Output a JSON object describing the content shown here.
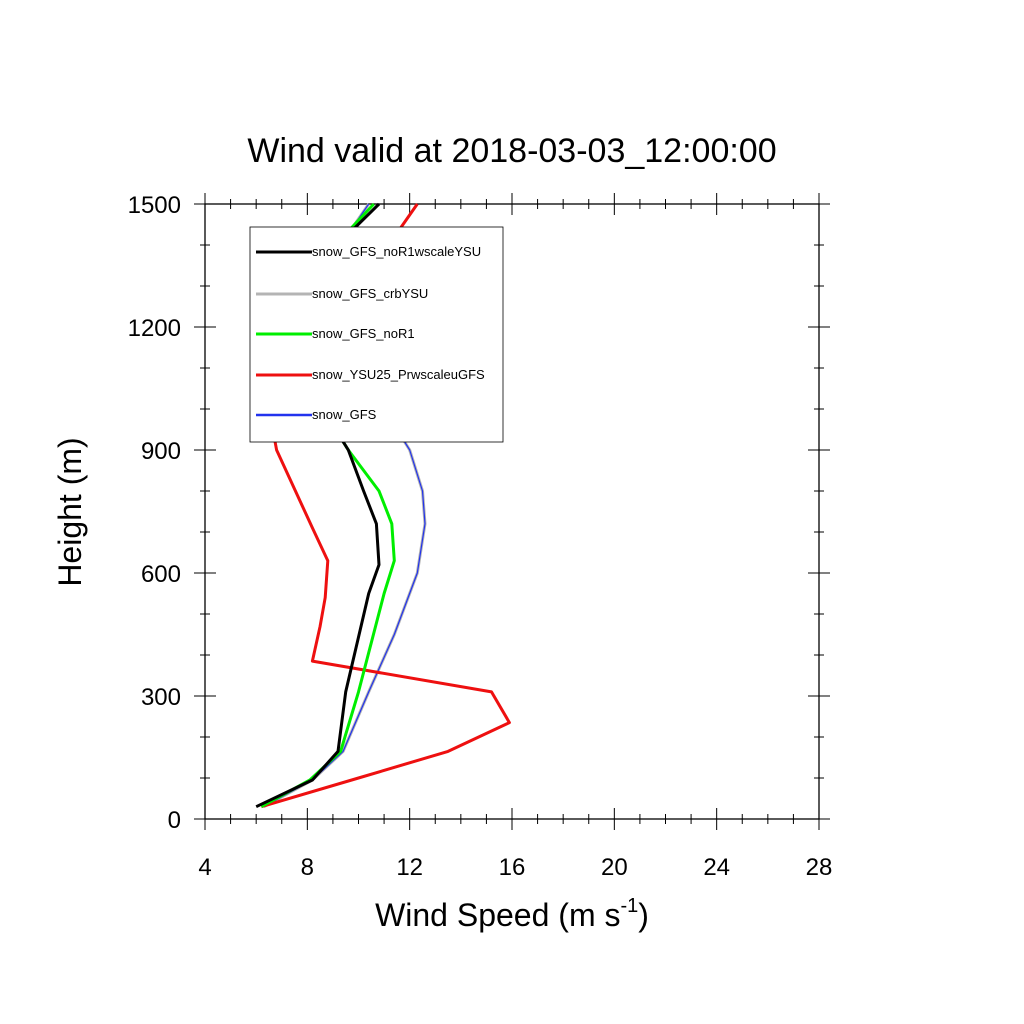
{
  "chart_data": {
    "type": "line",
    "title": "Wind valid at 2018-03-03_12:00:00",
    "xlabel": "Wind Speed (m s",
    "xlabel_superscript": "-1",
    "xlabel_suffix": ")",
    "ylabel": "Height (m)",
    "xlim": [
      4,
      28
    ],
    "ylim": [
      0,
      1500
    ],
    "x_ticks": [
      4,
      8,
      12,
      16,
      20,
      24,
      28
    ],
    "y_ticks": [
      0,
      300,
      600,
      900,
      1200,
      1500
    ],
    "grid": false,
    "legend_position": "top-left",
    "series": [
      {
        "name": "snow_GFS_noR1wscaleYSU",
        "color": "#000000",
        "x": [
          6.0,
          8.2,
          9.2,
          9.5,
          10.4,
          10.8,
          10.7,
          10.2,
          9.6,
          8.6,
          7.6,
          7.5,
          8.3,
          9.5,
          10.8
        ],
        "y": [
          30,
          95,
          165,
          310,
          550,
          620,
          720,
          800,
          900,
          1000,
          1080,
          1180,
          1300,
          1420,
          1500
        ]
      },
      {
        "name": "snow_GFS_crbYSU",
        "color": "#b4b4b4",
        "x": [
          6.3,
          8.2,
          9.4,
          10.4,
          11.4,
          12.3,
          12.6,
          12.5,
          12.0,
          11.2,
          10.0,
          9.0,
          8.8,
          9.3,
          10.4
        ],
        "y": [
          30,
          95,
          165,
          310,
          450,
          600,
          720,
          800,
          900,
          980,
          1080,
          1180,
          1300,
          1400,
          1500
        ]
      },
      {
        "name": "snow_GFS_noR1",
        "color": "#00ee00",
        "x": [
          6.2,
          8.1,
          9.3,
          10.0,
          11.0,
          11.4,
          11.3,
          10.8,
          9.6,
          8.6,
          7.8,
          7.6,
          8.2,
          9.4,
          10.6
        ],
        "y": [
          30,
          95,
          165,
          310,
          550,
          630,
          720,
          800,
          900,
          1000,
          1090,
          1180,
          1300,
          1420,
          1500
        ]
      },
      {
        "name": "snow_YSU25_PrwscaleuGFS",
        "color": "#ee1010",
        "x": [
          6.2,
          10.0,
          13.5,
          15.9,
          15.2,
          8.2,
          8.5,
          8.7,
          8.8,
          8.2,
          6.8,
          6.5,
          6.9,
          8.5,
          10.4,
          12.3
        ],
        "y": [
          30,
          100,
          165,
          235,
          310,
          385,
          470,
          540,
          630,
          710,
          900,
          1000,
          1090,
          1180,
          1330,
          1500
        ]
      },
      {
        "name": "snow_GFS",
        "color": "#2233ee",
        "x": [
          6.3,
          8.2,
          9.4,
          10.4,
          11.4,
          12.3,
          12.6,
          12.5,
          12.0,
          11.2,
          10.0,
          9.0,
          8.8,
          9.3,
          10.4
        ],
        "y": [
          30,
          95,
          165,
          310,
          450,
          600,
          720,
          800,
          900,
          980,
          1080,
          1180,
          1300,
          1400,
          1500
        ]
      }
    ]
  }
}
